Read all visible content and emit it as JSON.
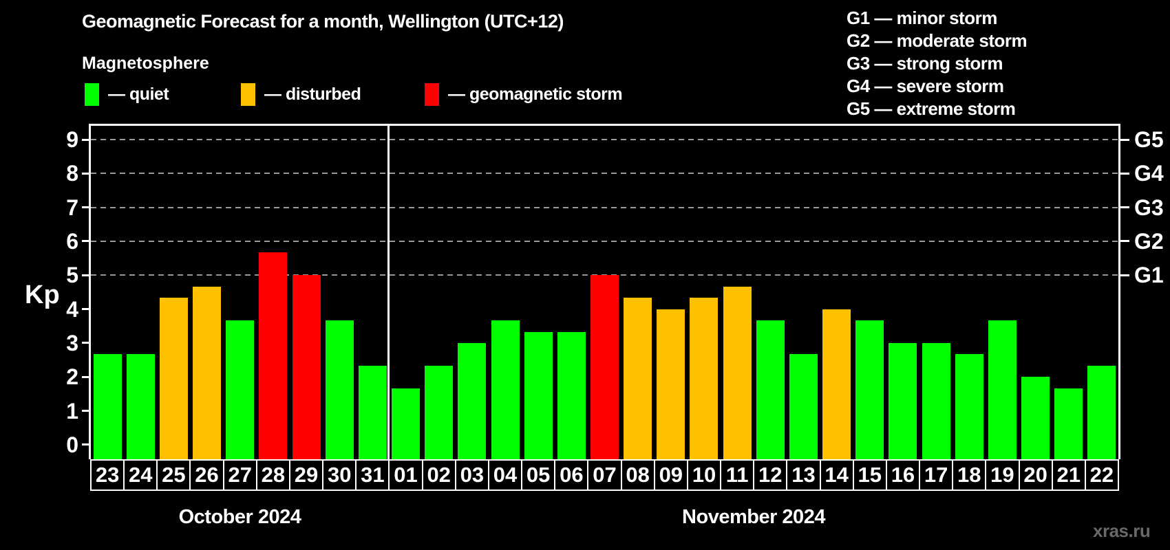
{
  "title": "Geomagnetic Forecast for a month, Wellington (UTC+12)",
  "subtitle": "Magnetosphere",
  "legend": [
    {
      "key": "quiet",
      "label": "— quiet",
      "color": "#00ff00"
    },
    {
      "key": "disturbed",
      "label": "— disturbed",
      "color": "#ffc000"
    },
    {
      "key": "storm",
      "label": "— geomagnetic storm",
      "color": "#ff0000"
    }
  ],
  "g_scale": [
    {
      "code": "G1",
      "label": "G1 — minor storm",
      "kp": 5
    },
    {
      "code": "G2",
      "label": "G2 — moderate storm",
      "kp": 6
    },
    {
      "code": "G3",
      "label": "G3 — strong storm",
      "kp": 7
    },
    {
      "code": "G4",
      "label": "G4 — severe storm",
      "kp": 8
    },
    {
      "code": "G5",
      "label": "G5 — extreme storm",
      "kp": 9
    }
  ],
  "axis": {
    "ylabel": "Kp",
    "left_ticks": [
      0,
      1,
      2,
      3,
      4,
      5,
      6,
      7,
      8,
      9
    ]
  },
  "months": [
    {
      "label": "October 2024"
    },
    {
      "label": "November 2024"
    }
  ],
  "watermark": "xras.ru",
  "chart_data": {
    "type": "bar",
    "title": "Geomagnetic Forecast for a month, Wellington (UTC+12)",
    "ylabel": "Kp",
    "ylim": [
      0,
      9.4
    ],
    "grid": "horizontal dashed lines at Kp 5-9 only",
    "gridlines_at": [
      5,
      6,
      7,
      8,
      9
    ],
    "legend_position": "top-left",
    "status_colors": {
      "quiet": "#00ff00",
      "disturbed": "#ffc000",
      "storm": "#ff0000"
    },
    "bars": [
      {
        "month": "October 2024",
        "date": "23",
        "value": 2.67,
        "status": "quiet"
      },
      {
        "month": "October 2024",
        "date": "24",
        "value": 2.67,
        "status": "quiet"
      },
      {
        "month": "October 2024",
        "date": "25",
        "value": 4.33,
        "status": "disturbed"
      },
      {
        "month": "October 2024",
        "date": "26",
        "value": 4.67,
        "status": "disturbed"
      },
      {
        "month": "October 2024",
        "date": "27",
        "value": 3.67,
        "status": "quiet"
      },
      {
        "month": "October 2024",
        "date": "28",
        "value": 5.67,
        "status": "storm"
      },
      {
        "month": "October 2024",
        "date": "29",
        "value": 5.0,
        "status": "storm"
      },
      {
        "month": "October 2024",
        "date": "30",
        "value": 3.67,
        "status": "quiet"
      },
      {
        "month": "October 2024",
        "date": "31",
        "value": 2.33,
        "status": "quiet"
      },
      {
        "month": "November 2024",
        "date": "01",
        "value": 1.67,
        "status": "quiet"
      },
      {
        "month": "November 2024",
        "date": "02",
        "value": 2.33,
        "status": "quiet"
      },
      {
        "month": "November 2024",
        "date": "03",
        "value": 3.0,
        "status": "quiet"
      },
      {
        "month": "November 2024",
        "date": "04",
        "value": 3.67,
        "status": "quiet"
      },
      {
        "month": "November 2024",
        "date": "05",
        "value": 3.33,
        "status": "quiet"
      },
      {
        "month": "November 2024",
        "date": "06",
        "value": 3.33,
        "status": "quiet"
      },
      {
        "month": "November 2024",
        "date": "07",
        "value": 5.0,
        "status": "storm"
      },
      {
        "month": "November 2024",
        "date": "08",
        "value": 4.33,
        "status": "disturbed"
      },
      {
        "month": "November 2024",
        "date": "09",
        "value": 4.0,
        "status": "disturbed"
      },
      {
        "month": "November 2024",
        "date": "10",
        "value": 4.33,
        "status": "disturbed"
      },
      {
        "month": "November 2024",
        "date": "11",
        "value": 4.67,
        "status": "disturbed"
      },
      {
        "month": "November 2024",
        "date": "12",
        "value": 3.67,
        "status": "quiet"
      },
      {
        "month": "November 2024",
        "date": "13",
        "value": 2.67,
        "status": "quiet"
      },
      {
        "month": "November 2024",
        "date": "14",
        "value": 4.0,
        "status": "disturbed"
      },
      {
        "month": "November 2024",
        "date": "15",
        "value": 3.67,
        "status": "quiet"
      },
      {
        "month": "November 2024",
        "date": "16",
        "value": 3.0,
        "status": "quiet"
      },
      {
        "month": "November 2024",
        "date": "17",
        "value": 3.0,
        "status": "quiet"
      },
      {
        "month": "November 2024",
        "date": "18",
        "value": 2.67,
        "status": "quiet"
      },
      {
        "month": "November 2024",
        "date": "19",
        "value": 3.67,
        "status": "quiet"
      },
      {
        "month": "November 2024",
        "date": "20",
        "value": 2.0,
        "status": "quiet"
      },
      {
        "month": "November 2024",
        "date": "21",
        "value": 1.67,
        "status": "quiet"
      },
      {
        "month": "November 2024",
        "date": "22",
        "value": 2.33,
        "status": "quiet"
      }
    ]
  }
}
